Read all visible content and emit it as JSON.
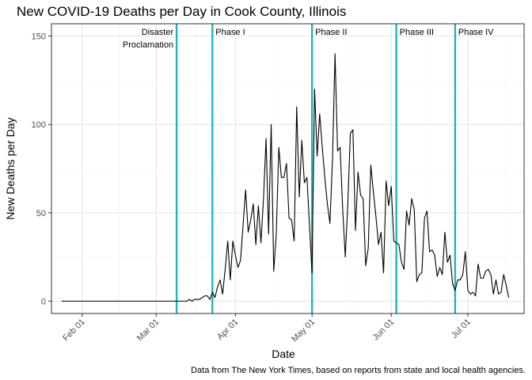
{
  "chart_data": {
    "type": "line",
    "title": "New COVID-19 Deaths per Day in Cook County, Illinois",
    "xlabel": "Date",
    "ylabel": "New Deaths per Day",
    "caption": "Data from The New York Times, based on reports from state and local health agencies.",
    "xlim": [
      "2020-01-20",
      "2020-07-23"
    ],
    "ylim": [
      -7,
      157
    ],
    "x_ticks": [
      {
        "date": "2020-02-01",
        "label": "Feb 01"
      },
      {
        "date": "2020-03-01",
        "label": "Mar 01"
      },
      {
        "date": "2020-04-01",
        "label": "Apr 01"
      },
      {
        "date": "2020-05-01",
        "label": "May 01"
      },
      {
        "date": "2020-06-01",
        "label": "Jun 01"
      },
      {
        "date": "2020-07-01",
        "label": "Jul 01"
      }
    ],
    "y_ticks": [
      {
        "value": 0,
        "label": "0"
      },
      {
        "value": 50,
        "label": "50"
      },
      {
        "value": 100,
        "label": "100"
      },
      {
        "value": 150,
        "label": "150"
      }
    ],
    "grid": true,
    "line_color": "#000000",
    "vline_color": "#1fb5bd",
    "vlines": [
      {
        "date": "2020-03-09",
        "label_lines": [
          "Disaster",
          "Proclamation"
        ],
        "label_side": "left"
      },
      {
        "date": "2020-03-23",
        "label_lines": [
          "Phase I"
        ],
        "label_side": "right"
      },
      {
        "date": "2020-05-01",
        "label_lines": [
          "Phase II"
        ],
        "label_side": "right"
      },
      {
        "date": "2020-06-03",
        "label_lines": [
          "Phase III"
        ],
        "label_side": "right"
      },
      {
        "date": "2020-06-26",
        "label_lines": [
          "Phase IV"
        ],
        "label_side": "right"
      }
    ],
    "series": [
      {
        "start_date": "2020-01-24",
        "values": [
          0,
          0,
          0,
          0,
          0,
          0,
          0,
          0,
          0,
          0,
          0,
          0,
          0,
          0,
          0,
          0,
          0,
          0,
          0,
          0,
          0,
          0,
          0,
          0,
          0,
          0,
          0,
          0,
          0,
          0,
          0,
          0,
          0,
          0,
          0,
          0,
          0,
          0,
          0,
          0,
          0,
          0,
          0,
          0,
          0,
          0,
          0,
          0,
          0,
          0,
          1,
          0,
          1,
          1,
          1,
          2,
          3,
          3,
          1,
          5,
          2,
          8,
          12,
          4,
          18,
          34,
          12,
          34,
          26,
          19,
          23,
          43,
          63,
          39,
          46,
          55,
          32,
          54,
          33,
          58,
          92,
          38,
          100,
          17,
          38,
          87,
          70,
          70,
          78,
          47,
          46,
          34,
          110,
          59,
          91,
          67,
          70,
          43,
          16,
          120,
          82,
          106,
          87,
          70,
          55,
          44,
          80,
          140,
          85,
          87,
          52,
          25,
          55,
          95,
          97,
          40,
          73,
          60,
          58,
          20,
          30,
          77,
          62,
          48,
          32,
          39,
          16,
          68,
          54,
          65,
          34,
          33,
          32,
          22,
          18,
          51,
          43,
          58,
          52,
          11,
          15,
          16,
          47,
          51,
          28,
          29,
          26,
          14,
          19,
          15,
          39,
          22,
          26,
          10,
          6,
          12,
          12,
          15,
          28,
          6,
          4,
          5,
          3,
          21,
          13,
          13,
          17,
          18,
          15,
          4,
          12,
          4,
          5,
          15,
          9,
          2
        ]
      }
    ]
  }
}
